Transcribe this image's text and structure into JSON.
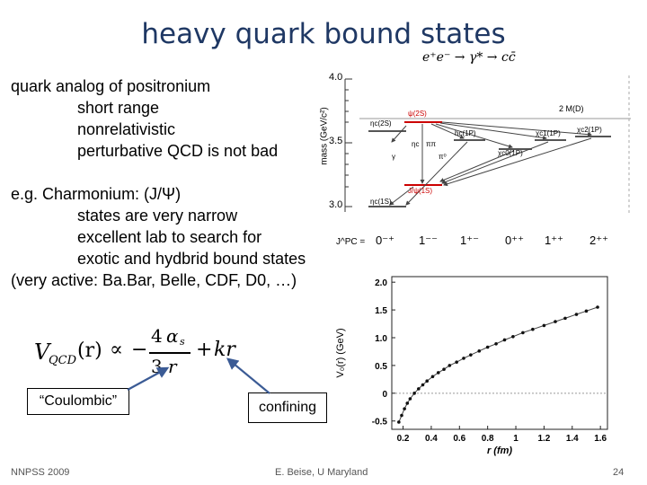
{
  "title": "heavy quark bound states",
  "bullets": [
    "quark analog of positronium",
    "short range",
    "nonrelativistic",
    "perturbative QCD is not bad"
  ],
  "example": {
    "lead": "e.g. Charmonium: (J/Ψ)",
    "items": [
      "states are very narrow",
      "excellent lab to search for",
      "exotic and hydbrid bound states",
      "(very active: Ba.Bar, Belle, CDF, D0, …)"
    ]
  },
  "formula": {
    "lhs": "V",
    "lhs_sub": "QCD",
    "arg": "(r)",
    "prop": "∝",
    "minus": "−",
    "num": "4",
    "alpha": "α",
    "alpha_sub": "s",
    "den_a": "3",
    "den_b": "r",
    "plus": "+",
    "kr": "kr"
  },
  "labels": {
    "coulombic": "“Coulombic”",
    "confining": "confining"
  },
  "footer": {
    "left": "NNPSS 2009",
    "center": "E. Beise, U Maryland",
    "page": "24"
  },
  "spectrum": {
    "reaction": "e⁺e⁻ → γ* → cc̄",
    "ylabel": "mass (GeV/c²)",
    "yticks": [
      "4.0",
      "3.5",
      "3.0"
    ],
    "jpc_label": "J^PC =",
    "jpc": [
      "0⁻⁺",
      "1⁻⁻",
      "1⁺⁻",
      "0⁺⁺",
      "1⁺⁺",
      "2⁺⁺"
    ],
    "threshold": "2 M(D)",
    "states": [
      "ηc(2S)",
      "ψ(2S)",
      "hc(1P)",
      "χc0(1P)",
      "χc1(1P)",
      "χc2(1P)",
      "ηc(1S)",
      "J/ψ(1S)"
    ],
    "annotations": [
      "ηc",
      "ππ",
      "π⁰",
      "γ"
    ]
  },
  "chart_data": {
    "type": "scatter",
    "xlabel": "r (fm)",
    "ylabel": "V₀(r) (GeV)",
    "xticks": [
      "0.2",
      "0.4",
      "0.6",
      "0.8",
      "1",
      "1.2",
      "1.4",
      "1.6"
    ],
    "yticks": [
      "2.0",
      "1.5",
      "1.0",
      "0.5",
      "0",
      "-0.5"
    ],
    "xlim": [
      0.12,
      1.65
    ],
    "ylim": [
      -0.65,
      2.1
    ],
    "x": [
      0.17,
      0.19,
      0.21,
      0.23,
      0.25,
      0.28,
      0.31,
      0.34,
      0.37,
      0.41,
      0.45,
      0.49,
      0.53,
      0.58,
      0.63,
      0.68,
      0.74,
      0.8,
      0.86,
      0.92,
      0.98,
      1.05,
      1.12,
      1.2,
      1.28,
      1.35,
      1.43,
      1.5,
      1.58
    ],
    "y": [
      -0.52,
      -0.4,
      -0.28,
      -0.18,
      -0.1,
      0.0,
      0.08,
      0.15,
      0.22,
      0.3,
      0.37,
      0.43,
      0.5,
      0.56,
      0.63,
      0.69,
      0.76,
      0.83,
      0.89,
      0.96,
      1.02,
      1.09,
      1.15,
      1.22,
      1.29,
      1.35,
      1.42,
      1.48,
      1.55
    ]
  }
}
